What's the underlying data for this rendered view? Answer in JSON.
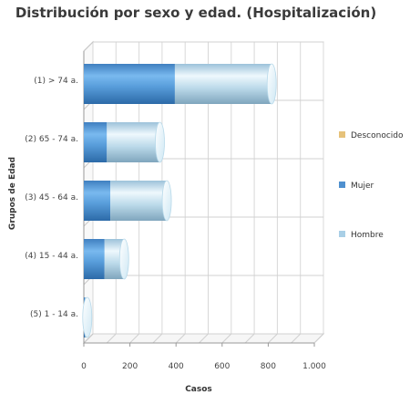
{
  "chart_data": {
    "type": "bar",
    "orientation": "horizontal",
    "stacked": true,
    "style_3d": "cylinder",
    "title": "Distribución por sexo y edad. (Hospitalización)",
    "xlabel": "Casos",
    "ylabel": "Grupos de Edad",
    "categories": [
      "(1) > 74 a.",
      "(2) 65 - 74 a.",
      "(3) 45 - 64 a.",
      "(4) 15 - 44 a.",
      "(5) 1 - 14 a."
    ],
    "xlim": [
      0,
      1000
    ],
    "xticks": [
      "0",
      "200",
      "400",
      "600",
      "800",
      "1.000"
    ],
    "grid": true,
    "legend_position": "right",
    "series": [
      {
        "name": "Mujer",
        "values": [
          395,
          100,
          115,
          90,
          5
        ],
        "color": "#4f90cf"
      },
      {
        "name": "Hombre",
        "values": [
          420,
          230,
          245,
          85,
          10
        ],
        "color": "#a9cfe6"
      },
      {
        "name": "Desconocido",
        "values": [
          0,
          0,
          0,
          0,
          0
        ],
        "color": "#e6c27a"
      }
    ],
    "legend": [
      {
        "label": "Desconocido",
        "color": "#e6c27a"
      },
      {
        "label": "Mujer",
        "color": "#4f90cf"
      },
      {
        "label": "Hombre",
        "color": "#a9cfe6"
      }
    ]
  }
}
